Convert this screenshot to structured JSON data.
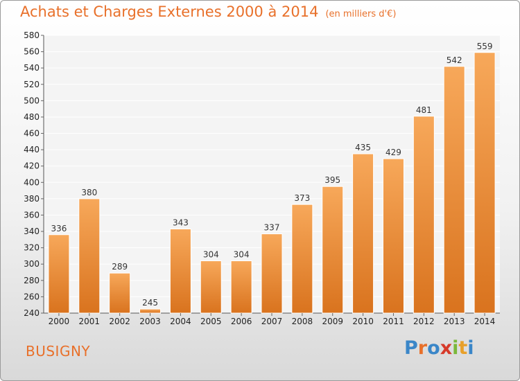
{
  "title": "Achats et Charges Externes 2000 à 2014",
  "unit": "(en milliers d'€)",
  "town": "BUSIGNY",
  "logo": {
    "letters": [
      "P",
      "r",
      "o",
      "x",
      "i",
      "t",
      "i"
    ],
    "colors": [
      "#3a86c8",
      "#e8702a",
      "#3a86c8",
      "#d63a2a",
      "#7ab83a",
      "#e8a02a",
      "#3a86c8"
    ]
  },
  "colors": {
    "accent": "#e8702a",
    "bar_top": "#f7a85a",
    "bar_bottom": "#d9731e"
  },
  "chart_data": {
    "type": "bar",
    "categories": [
      "2000",
      "2001",
      "2002",
      "2003",
      "2004",
      "2005",
      "2006",
      "2007",
      "2008",
      "2009",
      "2010",
      "2011",
      "2012",
      "2013",
      "2014"
    ],
    "values": [
      336,
      380,
      289,
      245,
      343,
      304,
      304,
      337,
      373,
      395,
      435,
      429,
      481,
      542,
      559
    ],
    "ylim": [
      240,
      580
    ],
    "yticks": [
      240,
      260,
      280,
      300,
      320,
      340,
      360,
      380,
      400,
      420,
      440,
      460,
      480,
      500,
      520,
      540,
      560,
      580
    ],
    "grid": true,
    "title": "Achats et Charges Externes 2000 à 2014",
    "xlabel": "",
    "ylabel": ""
  }
}
